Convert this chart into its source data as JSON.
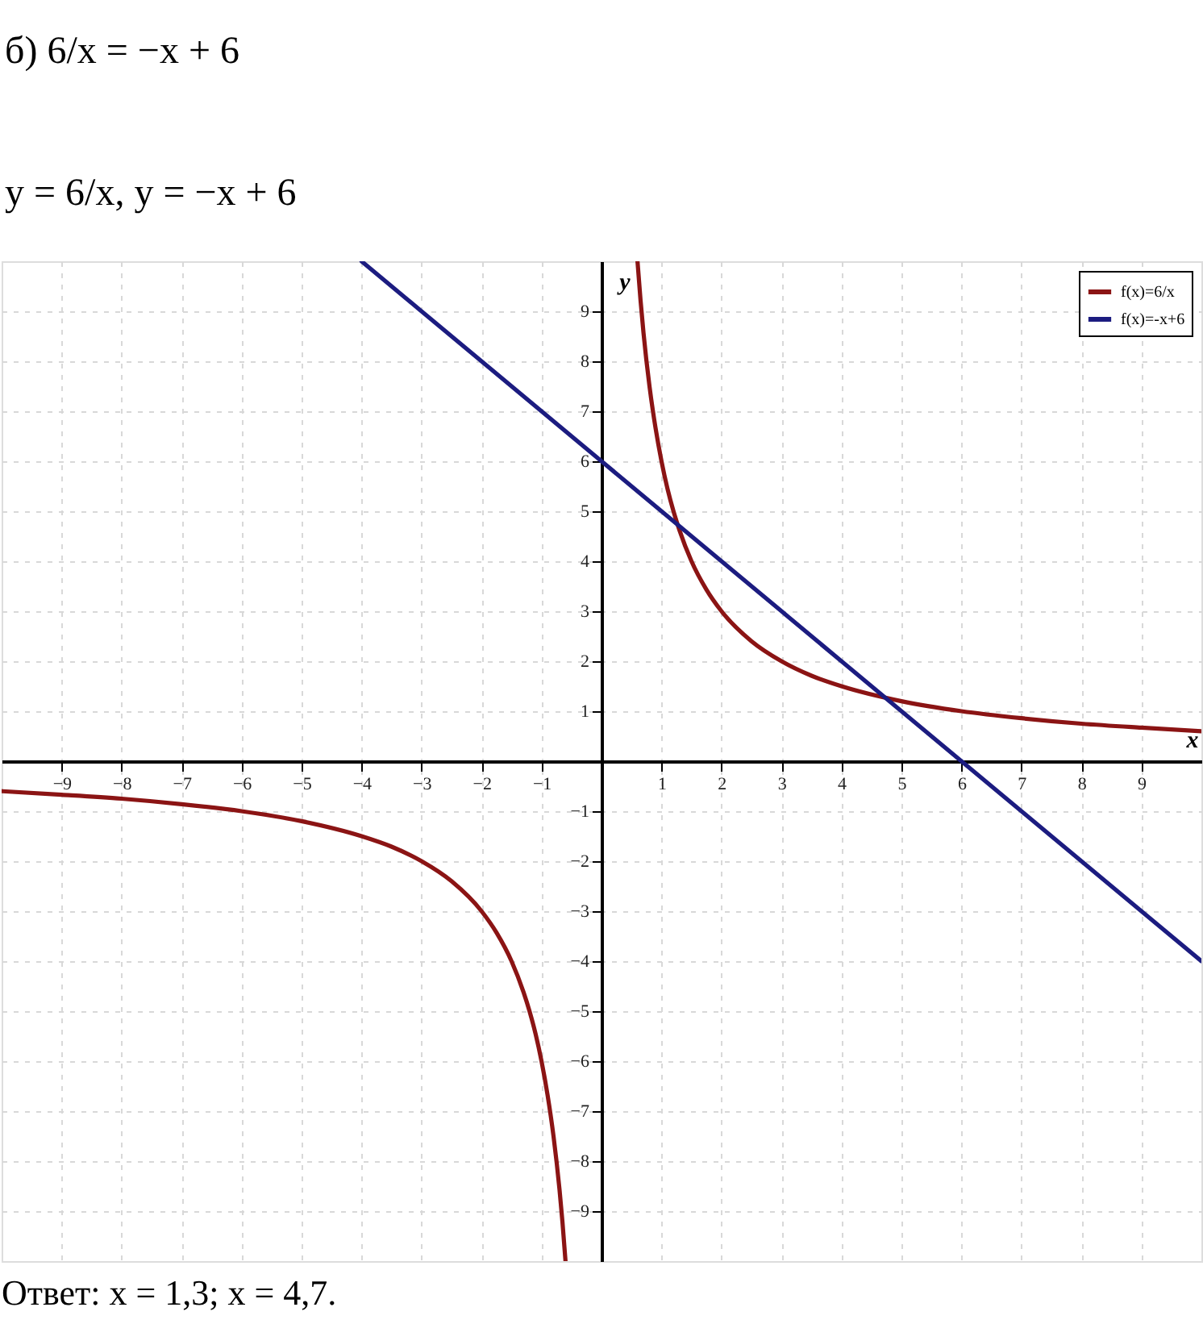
{
  "chart_data": {
    "type": "line",
    "title": "б) 6/x = −x + 6",
    "subtitle": "y = 6/x,   y = −x + 6",
    "xlabel": "x",
    "ylabel": "y",
    "xlim": [
      -10,
      10
    ],
    "ylim": [
      -10,
      10
    ],
    "xticks": [
      -9,
      -8,
      -7,
      -6,
      -5,
      -4,
      -3,
      -2,
      -1,
      1,
      2,
      3,
      4,
      5,
      6,
      7,
      8,
      9
    ],
    "yticks": [
      -9,
      -8,
      -7,
      -6,
      -5,
      -4,
      -3,
      -2,
      -1,
      1,
      2,
      3,
      4,
      5,
      6,
      7,
      8,
      9
    ],
    "grid": true,
    "legend": "top right",
    "series": [
      {
        "name": "f(x)=6/x",
        "color": "#8b1414",
        "x": [
          -10,
          -9,
          -8,
          -7,
          -6,
          -5,
          -4,
          -3.5,
          -3,
          -2.5,
          -2,
          -1.75,
          -1.5,
          -1.3,
          -1.2,
          -1.1,
          -1,
          -0.9,
          -0.8,
          -0.7,
          -0.65,
          -0.6,
          0,
          0.6,
          0.65,
          0.7,
          0.8,
          0.9,
          1,
          1.1,
          1.2,
          1.3,
          1.5,
          1.75,
          2,
          2.5,
          3,
          3.5,
          4,
          5,
          6,
          7,
          8,
          9,
          10
        ],
        "values": [
          -0.6,
          -0.67,
          -0.75,
          -0.86,
          -1,
          -1.2,
          -1.5,
          -1.71,
          -2,
          -2.4,
          -3,
          -3.43,
          -4,
          -4.62,
          -5,
          -5.45,
          -6,
          -6.67,
          -7.5,
          -8.57,
          -9.23,
          -10,
          null,
          10,
          9.23,
          8.57,
          7.5,
          6.67,
          6,
          5.45,
          5,
          4.62,
          4,
          3.43,
          3,
          2.4,
          2,
          1.71,
          1.5,
          1.2,
          1,
          0.86,
          0.75,
          0.67,
          0.6
        ]
      },
      {
        "name": "f(x)=-x+6",
        "color": "#1c1c80",
        "x": [
          -4,
          -2,
          0,
          2,
          4,
          6,
          8,
          10
        ],
        "values": [
          10,
          8,
          6,
          4,
          2,
          0,
          -2,
          -4
        ]
      }
    ],
    "annotations": [
      "Ответ: x = 1,3;  x = 4,7."
    ]
  }
}
